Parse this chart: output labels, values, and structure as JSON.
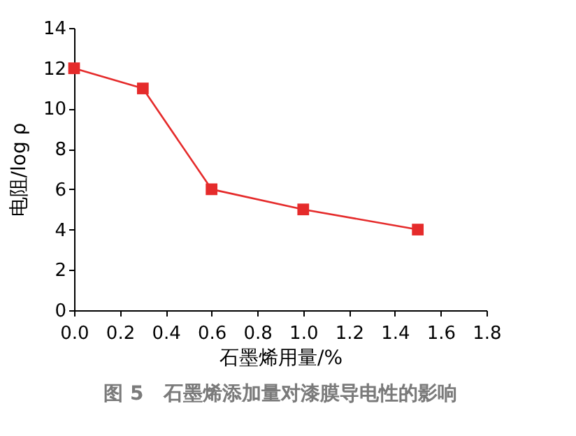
{
  "chart_data": {
    "type": "line",
    "title": "图 5　石墨烯添加量对漆膜导电性的影响",
    "xlabel": "石墨烯用量/%",
    "ylabel": "电阻/log ρ",
    "x": [
      0,
      0.3,
      0.6,
      1.0,
      1.5
    ],
    "series": [
      {
        "color": "#e52b2b",
        "values": [
          12,
          11,
          6,
          5,
          4
        ]
      }
    ],
    "xlim": [
      0,
      1.8
    ],
    "xticks": [
      {
        "value": 0,
        "label": "0.0"
      },
      0.2,
      0.4,
      0.6,
      0.8,
      {
        "value": 1,
        "label": "1.0"
      },
      1.2,
      1.4,
      1.6,
      1.8
    ],
    "ylim": [
      0,
      14
    ],
    "yticks": [
      0,
      2,
      4,
      6,
      8,
      10,
      12,
      14
    ],
    "grid": false,
    "marker": "square",
    "line_style": "solid"
  }
}
